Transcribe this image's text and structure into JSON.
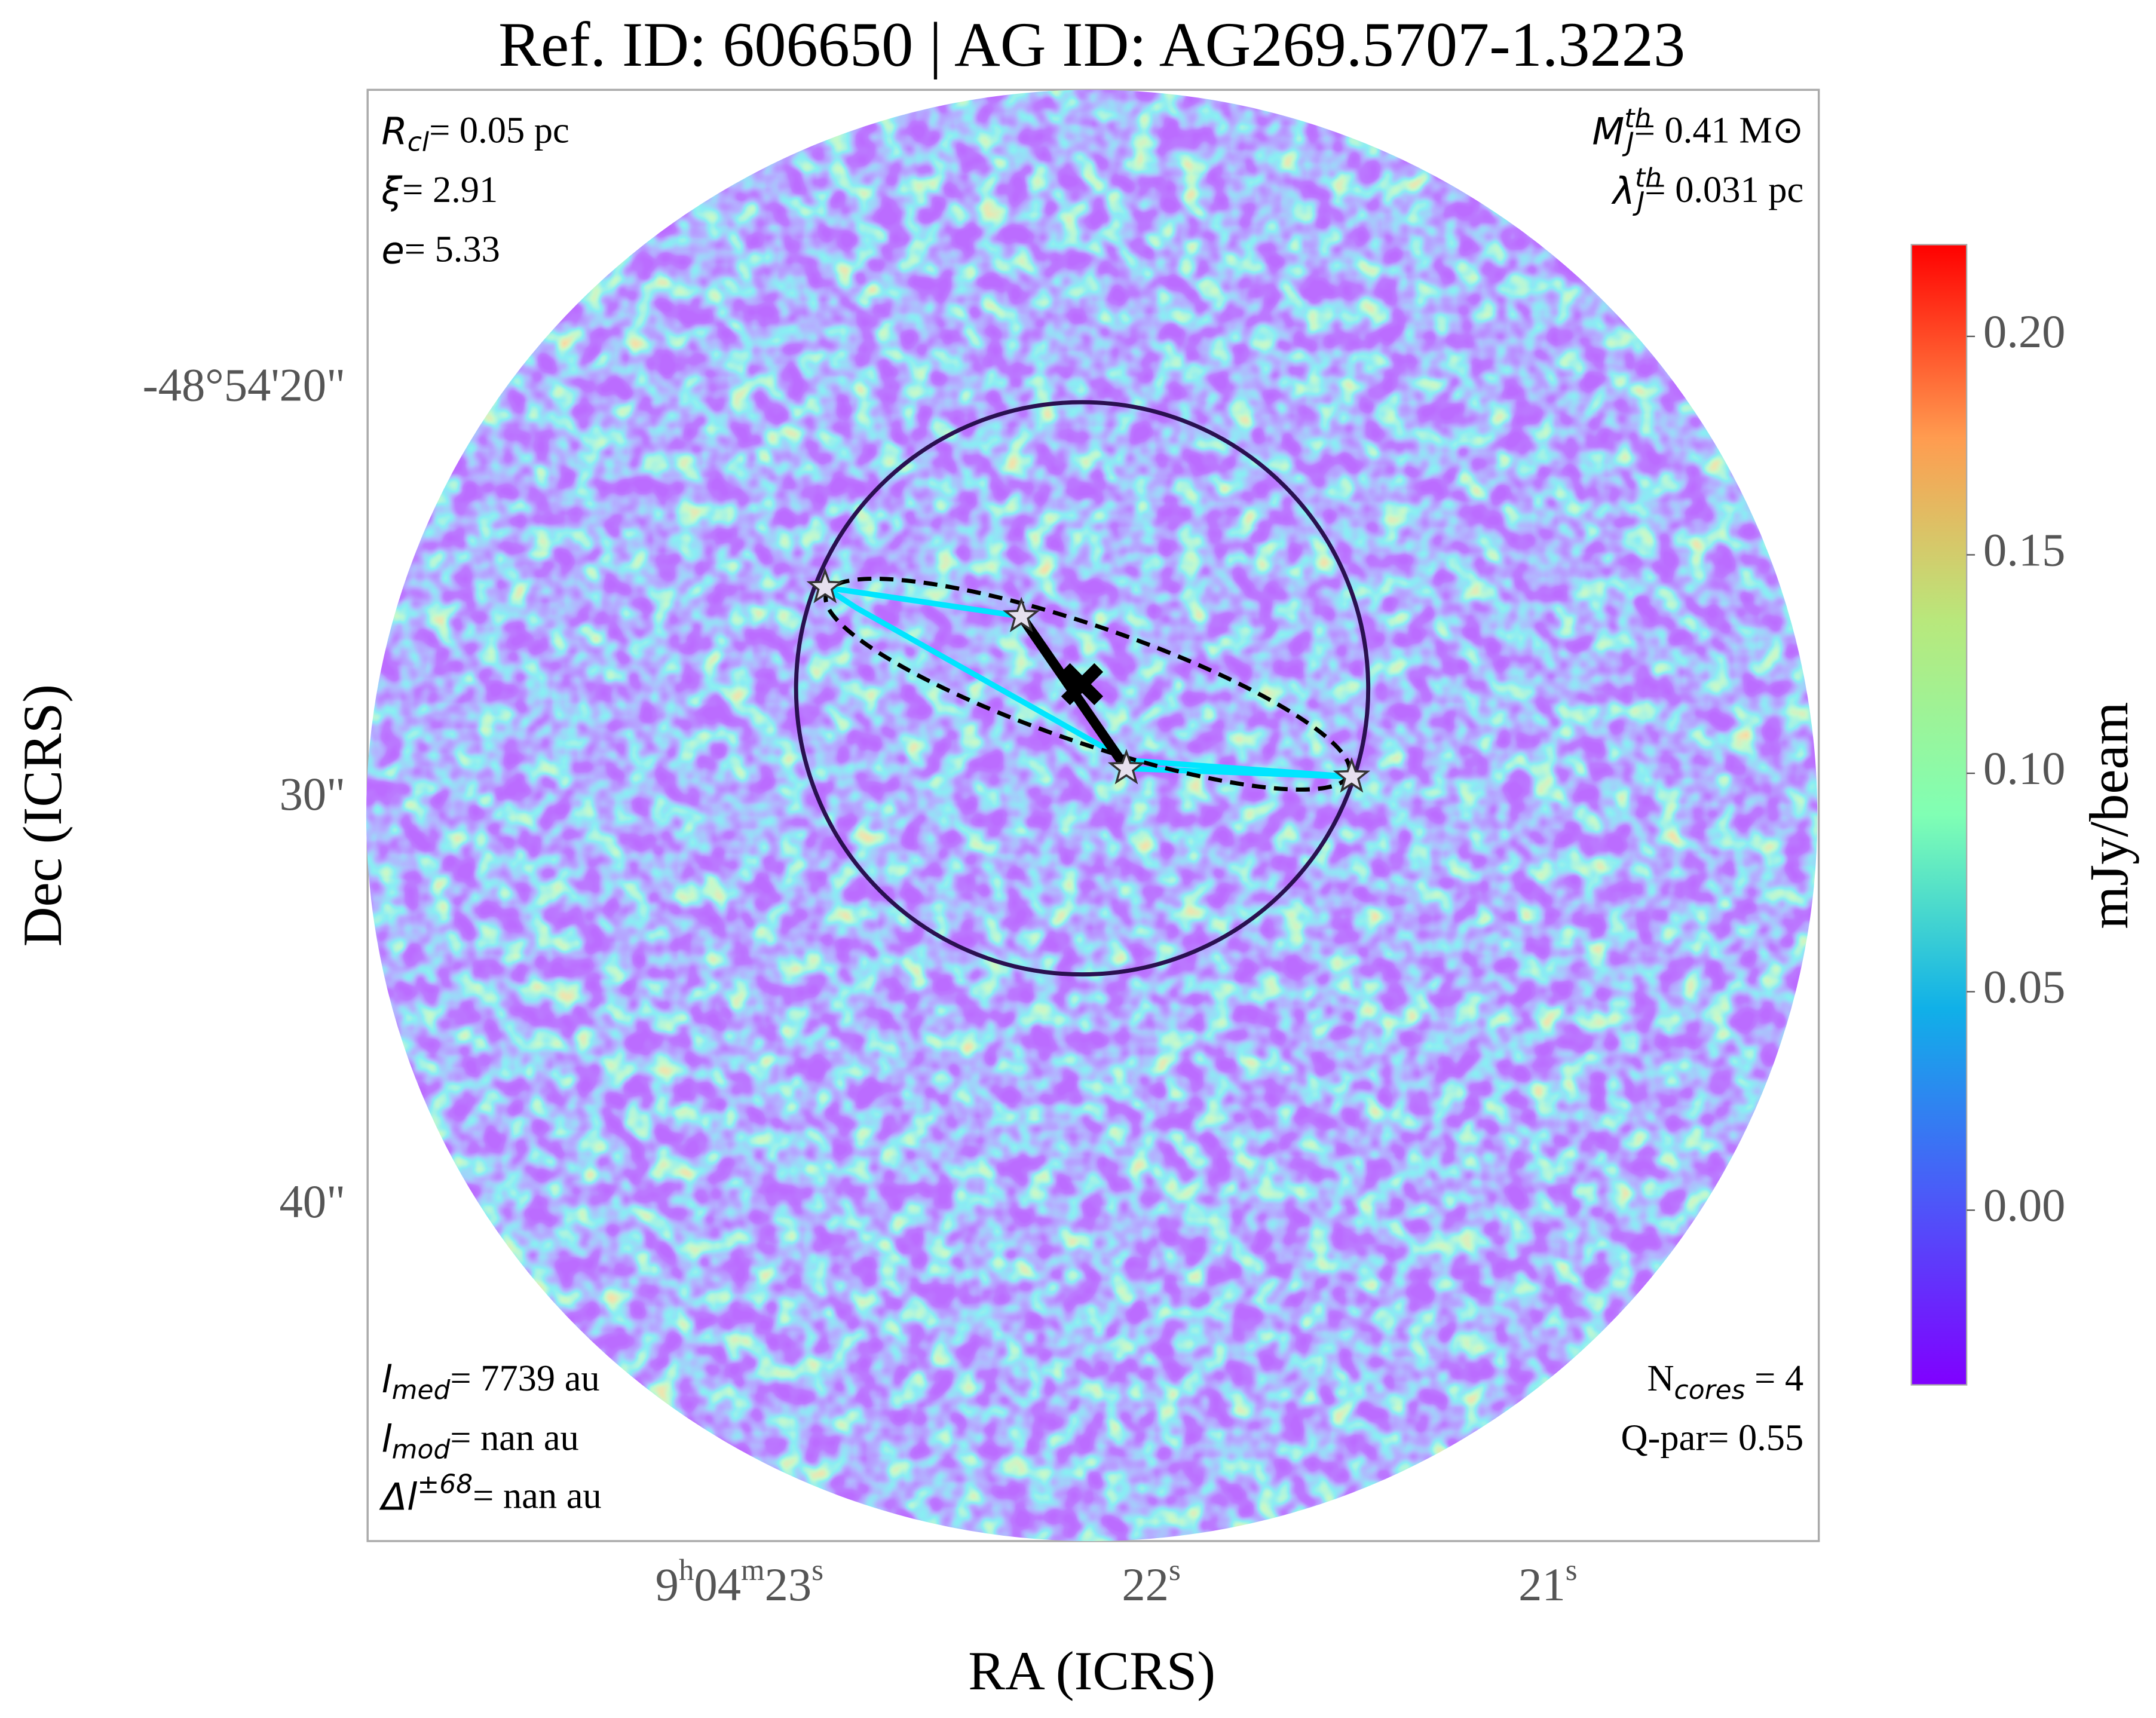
{
  "chart_data": {
    "type": "image",
    "title": "Ref. ID: 606650 | AG ID: AG269.5707-1.3223",
    "xlabel": "RA (ICRS)",
    "ylabel": "Dec (ICRS)",
    "xtick_labels": [
      [
        "9",
        "h",
        "04",
        "m",
        "23",
        "s"
      ],
      [
        "22",
        "s"
      ],
      [
        "21",
        "s"
      ]
    ],
    "ytick_labels": [
      "-48°54'20\"",
      "30\"",
      "40\""
    ],
    "annotations": {
      "r_cl": {
        "symbol": "R",
        "sub": "cl",
        "text": "= 0.05 pc"
      },
      "xi": {
        "symbol": "ξ",
        "text": "= 2.91"
      },
      "e": {
        "symbol": "e",
        "text": "= 5.33"
      },
      "m_j": {
        "symbol": "M",
        "sub": "J",
        "sup": "th",
        "text": "= 0.41 M⊙"
      },
      "lambda_j": {
        "symbol": "λ",
        "sub": "J",
        "sup": "th",
        "text": "= 0.031 pc"
      },
      "l_med": {
        "symbol": "l",
        "sub": "med",
        "text": "= 7739 au"
      },
      "l_mod": {
        "symbol": "l",
        "sub": "mod",
        "text": "= nan au"
      },
      "delta_l": {
        "symbol": "Δl",
        "sup": "±68",
        "text": "= nan au"
      },
      "n_cores": {
        "symbol": "N",
        "sub": "cores",
        "text": " = 4"
      },
      "q_par": {
        "text": "Q-par= 0.55"
      }
    },
    "colorbar": {
      "label": "mJy/beam",
      "clim": [
        -0.04,
        0.221
      ],
      "ticks": [
        {
          "value": 0,
          "label": "0.00"
        },
        {
          "value": 0.05,
          "label": "0.05"
        },
        {
          "value": 0.1,
          "label": "0.10"
        },
        {
          "value": 0.15,
          "label": "0.15"
        },
        {
          "value": 0.2,
          "label": "0.20"
        }
      ]
    }
  }
}
